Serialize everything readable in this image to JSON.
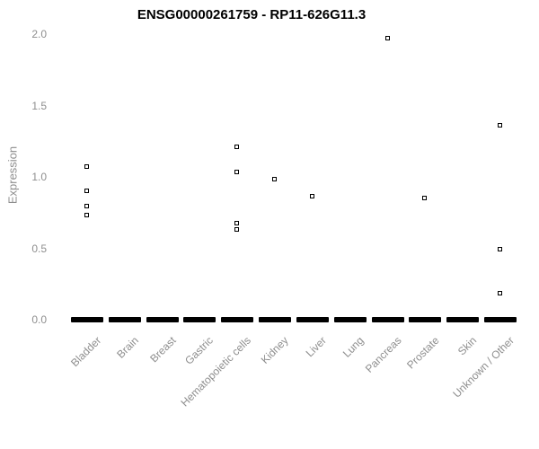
{
  "chart": {
    "title": "ENSG00000261759 - RP11-626G11.3",
    "ylabel": "Expression"
  },
  "chart_data": {
    "type": "scatter",
    "title": "ENSG00000261759 - RP11-626G11.3",
    "xlabel": "",
    "ylabel": "Expression",
    "ylim": [
      0.0,
      2.0
    ],
    "yticks": [
      0.0,
      0.5,
      1.0,
      1.5,
      2.0
    ],
    "grid": false,
    "legend": "none",
    "marker": "small open square, black outline, white fill",
    "zero_cluster_note": "every category shows a dense cluster of samples at expression 0, drawn as a thick black horizontal dash",
    "categories": [
      "Bladder",
      "Brain",
      "Breast",
      "Gastric",
      "Hematopoietic cells",
      "Kidney",
      "Liver",
      "Lung",
      "Pancreas",
      "Prostate",
      "Skin",
      "Unknown / Other"
    ],
    "series": [
      {
        "name": "Bladder",
        "nonzero_values": [
          1.07,
          0.9,
          0.79,
          0.73
        ],
        "zero_cluster": true
      },
      {
        "name": "Brain",
        "nonzero_values": [],
        "zero_cluster": true
      },
      {
        "name": "Breast",
        "nonzero_values": [],
        "zero_cluster": true
      },
      {
        "name": "Gastric",
        "nonzero_values": [],
        "zero_cluster": true
      },
      {
        "name": "Hematopoietic cells",
        "nonzero_values": [
          1.21,
          1.03,
          0.67,
          0.63
        ],
        "zero_cluster": true
      },
      {
        "name": "Kidney",
        "nonzero_values": [
          0.98
        ],
        "zero_cluster": true
      },
      {
        "name": "Liver",
        "nonzero_values": [
          0.86
        ],
        "zero_cluster": true
      },
      {
        "name": "Lung",
        "nonzero_values": [],
        "zero_cluster": true
      },
      {
        "name": "Pancreas",
        "nonzero_values": [
          1.97
        ],
        "zero_cluster": true
      },
      {
        "name": "Prostate",
        "nonzero_values": [
          0.85
        ],
        "zero_cluster": true
      },
      {
        "name": "Skin",
        "nonzero_values": [],
        "zero_cluster": true
      },
      {
        "name": "Unknown / Other",
        "nonzero_values": [
          1.36,
          0.49,
          0.18
        ],
        "zero_cluster": true
      }
    ]
  }
}
